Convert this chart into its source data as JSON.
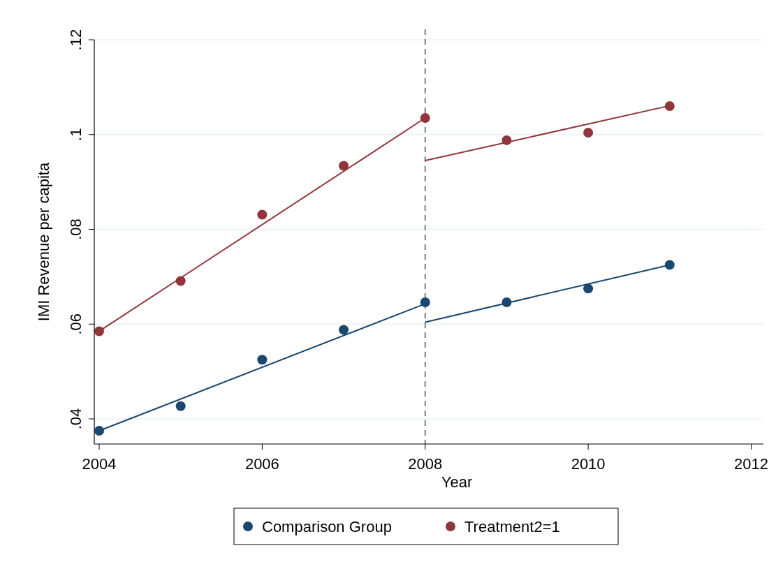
{
  "chart_data": {
    "type": "scatter",
    "xlabel": "Year",
    "ylabel": "IMI Revenue per capita",
    "xlim": [
      2003.94,
      2012.15
    ],
    "ylim": [
      0.0347,
      0.12
    ],
    "xticks": [
      2004,
      2006,
      2008,
      2010,
      2012
    ],
    "yticks": [
      {
        "value": 0.04,
        "label": ".04"
      },
      {
        "value": 0.06,
        "label": ".06"
      },
      {
        "value": 0.08,
        "label": ".08"
      },
      {
        "value": 0.1,
        "label": ".1"
      },
      {
        "value": 0.12,
        "label": ".12"
      }
    ],
    "grid": "y",
    "legend": "bottom",
    "marker": "circle",
    "ref_lines": [
      {
        "axis": "x",
        "value": 2008,
        "color": "#808080",
        "line_style": "dashed"
      }
    ],
    "series": [
      {
        "name": "Comparison Group",
        "color": "#1a476f",
        "x": [
          2004,
          2005,
          2006,
          2007,
          2008,
          2009,
          2010,
          2011
        ],
        "values": [
          0.0375,
          0.0427,
          0.0525,
          0.0588,
          0.0646,
          0.0646,
          0.0675,
          0.0725
        ]
      },
      {
        "name": "Treatment2=1",
        "color": "#90353b",
        "x": [
          2004,
          2005,
          2006,
          2007,
          2008,
          2009,
          2010,
          2011
        ],
        "values": [
          0.0585,
          0.0691,
          0.0831,
          0.0934,
          0.1035,
          0.0988,
          0.1004,
          0.106
        ]
      },
      {
        "type": "line",
        "marker": "none",
        "color": "#1a476f",
        "x": [
          2004,
          2008
        ],
        "values": [
          0.0375,
          0.0643
        ]
      },
      {
        "type": "line",
        "marker": "none",
        "color": "#1a476f",
        "x": [
          2008,
          2011
        ],
        "values": [
          0.0604,
          0.0725
        ]
      },
      {
        "type": "line",
        "marker": "none",
        "color": "#90353b",
        "x": [
          2004,
          2008
        ],
        "values": [
          0.0585,
          0.1035
        ]
      },
      {
        "type": "line",
        "marker": "none",
        "color": "#90353b",
        "x": [
          2008,
          2011
        ],
        "values": [
          0.0945,
          0.1061
        ]
      }
    ]
  }
}
